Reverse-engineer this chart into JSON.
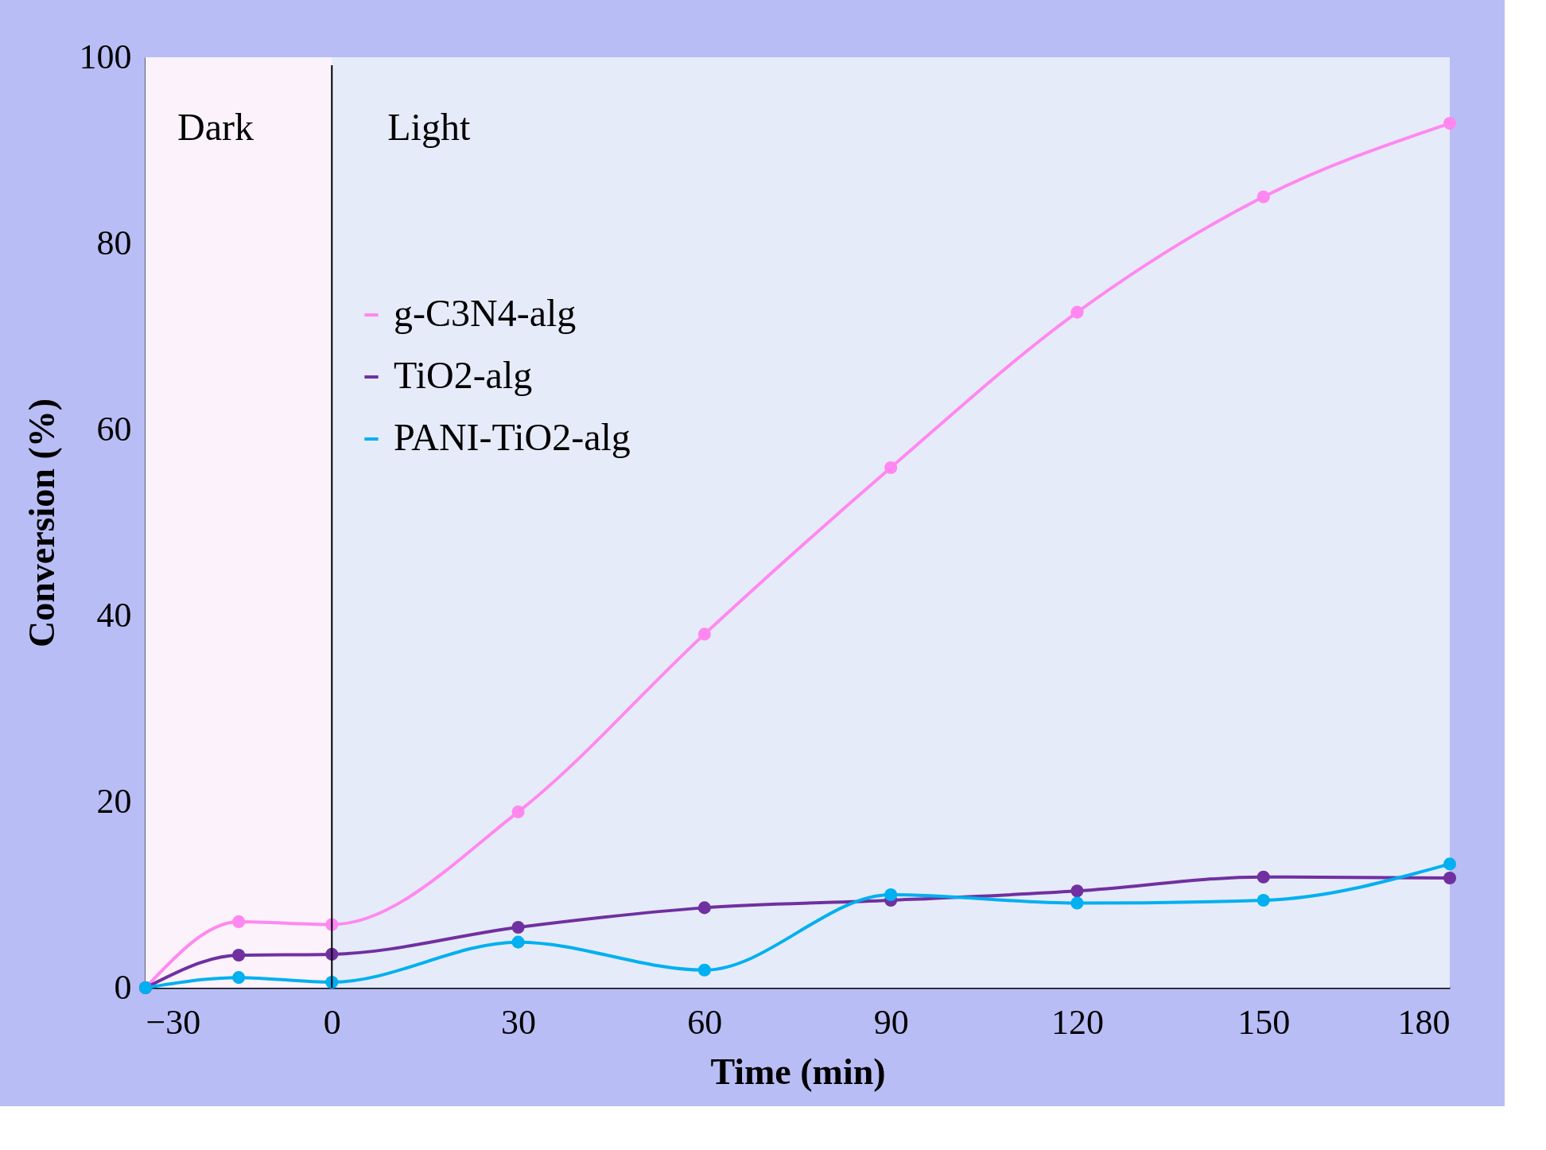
{
  "chart_data": {
    "type": "line",
    "xlabel": "Time (min)",
    "ylabel": "Conversion (%)",
    "x": [
      -30,
      -15,
      0,
      30,
      60,
      90,
      120,
      150,
      180
    ],
    "series": [
      {
        "name": "g-C3N4-alg",
        "color": "#ff88f0",
        "values": [
          0,
          7.1,
          6.8,
          18.9,
          38.0,
          55.9,
          72.6,
          85.0,
          92.9
        ]
      },
      {
        "name": "TiO2-alg",
        "color": "#7030a0",
        "values": [
          0,
          3.5,
          3.6,
          6.5,
          8.6,
          9.4,
          10.4,
          11.9,
          11.8
        ]
      },
      {
        "name": "PANI-TiO2-alg",
        "color": "#00b0f0",
        "values": [
          0,
          1.1,
          0.6,
          4.9,
          1.9,
          10.0,
          9.1,
          9.4,
          13.3
        ]
      }
    ],
    "xlim": [
      -30,
      180
    ],
    "xticks": [
      -30,
      0,
      30,
      60,
      90,
      120,
      150,
      180
    ],
    "ylim": [
      0,
      100
    ],
    "yticks": [
      0,
      20,
      40,
      60,
      80,
      100
    ],
    "ref_lines": [
      {
        "axis": "x",
        "value": 0,
        "color": "#000000"
      }
    ],
    "bands": [
      {
        "axis": "x",
        "from": -30,
        "to": 0,
        "label": "Dark",
        "color": "#fbf2fb"
      },
      {
        "axis": "x",
        "from": 0,
        "to": 180,
        "label": "Light",
        "color": "#e6ebfa"
      }
    ],
    "grid": false,
    "legend": "left",
    "marker": "circle",
    "line_style": "solid"
  }
}
